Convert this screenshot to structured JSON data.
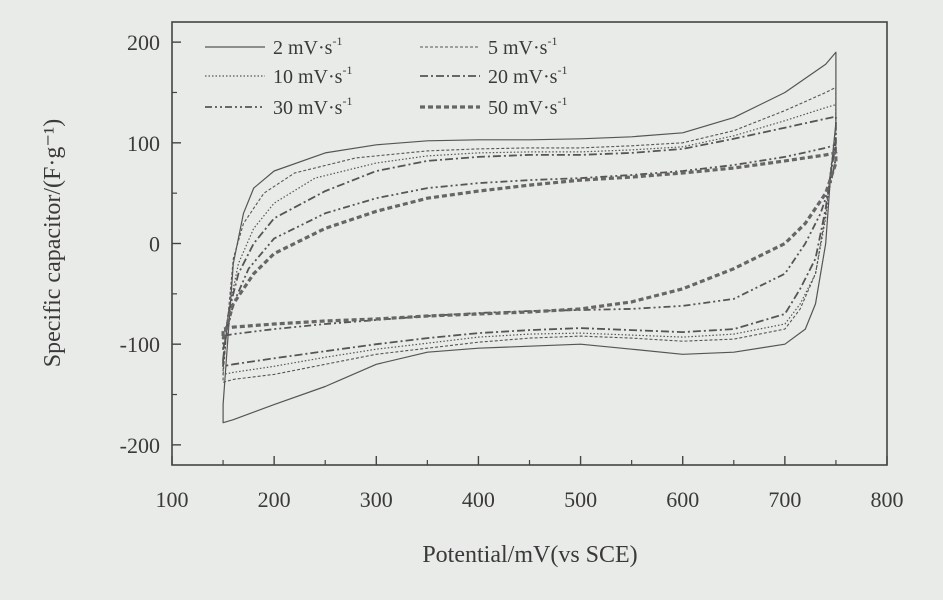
{
  "chart_data": {
    "type": "line",
    "title": "",
    "xlabel": "Potential/mV(vs SCE)",
    "ylabel": "Specific capacitor/(F·g⁻¹)",
    "xlim": [
      100,
      800
    ],
    "ylim": [
      -220,
      220
    ],
    "xticks": [
      100,
      200,
      300,
      400,
      500,
      600,
      700,
      800
    ],
    "yticks": [
      -200,
      -100,
      0,
      100,
      200
    ],
    "legend_position": "top",
    "series": [
      {
        "name": "2 mV·s⁻¹",
        "legend_base": "2 mV·s",
        "legend_sup": "-1",
        "dash": "",
        "width": 1.2,
        "color": "#555555",
        "upper": [
          [
            150,
            -160
          ],
          [
            155,
            -90
          ],
          [
            160,
            -20
          ],
          [
            170,
            30
          ],
          [
            180,
            55
          ],
          [
            200,
            72
          ],
          [
            250,
            90
          ],
          [
            300,
            98
          ],
          [
            350,
            102
          ],
          [
            400,
            103
          ],
          [
            450,
            103
          ],
          [
            500,
            104
          ],
          [
            550,
            106
          ],
          [
            600,
            110
          ],
          [
            650,
            125
          ],
          [
            700,
            150
          ],
          [
            740,
            178
          ],
          [
            750,
            190
          ]
        ],
        "lower": [
          [
            750,
            120
          ],
          [
            745,
            70
          ],
          [
            740,
            0
          ],
          [
            730,
            -60
          ],
          [
            720,
            -85
          ],
          [
            700,
            -100
          ],
          [
            650,
            -108
          ],
          [
            600,
            -110
          ],
          [
            550,
            -105
          ],
          [
            500,
            -100
          ],
          [
            450,
            -102
          ],
          [
            400,
            -104
          ],
          [
            350,
            -108
          ],
          [
            300,
            -120
          ],
          [
            250,
            -142
          ],
          [
            200,
            -160
          ],
          [
            160,
            -175
          ],
          [
            150,
            -178
          ]
        ]
      },
      {
        "name": "5 mV·s⁻¹",
        "legend_base": "5 mV·s",
        "legend_sup": "-1",
        "dash": "3 2",
        "width": 1.1,
        "color": "#555555",
        "upper": [
          [
            150,
            -130
          ],
          [
            155,
            -70
          ],
          [
            160,
            -15
          ],
          [
            170,
            20
          ],
          [
            190,
            50
          ],
          [
            220,
            70
          ],
          [
            280,
            85
          ],
          [
            350,
            92
          ],
          [
            400,
            94
          ],
          [
            450,
            95
          ],
          [
            500,
            95
          ],
          [
            550,
            97
          ],
          [
            600,
            100
          ],
          [
            650,
            112
          ],
          [
            700,
            132
          ],
          [
            740,
            150
          ],
          [
            750,
            155
          ]
        ],
        "lower": [
          [
            750,
            110
          ],
          [
            745,
            75
          ],
          [
            740,
            30
          ],
          [
            730,
            -30
          ],
          [
            715,
            -65
          ],
          [
            700,
            -85
          ],
          [
            650,
            -95
          ],
          [
            600,
            -97
          ],
          [
            550,
            -94
          ],
          [
            500,
            -92
          ],
          [
            450,
            -94
          ],
          [
            400,
            -98
          ],
          [
            350,
            -104
          ],
          [
            300,
            -110
          ],
          [
            250,
            -120
          ],
          [
            200,
            -130
          ],
          [
            160,
            -135
          ],
          [
            150,
            -138
          ]
        ]
      },
      {
        "name": "10 mV·s⁻¹",
        "legend_base": "10 mV·s",
        "legend_sup": "-1",
        "dash": "1.5 2",
        "width": 1.2,
        "color": "#555555",
        "upper": [
          [
            150,
            -125
          ],
          [
            155,
            -70
          ],
          [
            165,
            -20
          ],
          [
            180,
            15
          ],
          [
            200,
            40
          ],
          [
            240,
            65
          ],
          [
            300,
            80
          ],
          [
            350,
            87
          ],
          [
            400,
            90
          ],
          [
            450,
            91
          ],
          [
            500,
            91
          ],
          [
            550,
            93
          ],
          [
            600,
            96
          ],
          [
            650,
            107
          ],
          [
            700,
            122
          ],
          [
            740,
            135
          ],
          [
            750,
            138
          ]
        ],
        "lower": [
          [
            750,
            105
          ],
          [
            745,
            70
          ],
          [
            740,
            25
          ],
          [
            730,
            -30
          ],
          [
            715,
            -60
          ],
          [
            700,
            -80
          ],
          [
            650,
            -90
          ],
          [
            600,
            -93
          ],
          [
            550,
            -91
          ],
          [
            500,
            -89
          ],
          [
            450,
            -90
          ],
          [
            400,
            -93
          ],
          [
            350,
            -99
          ],
          [
            300,
            -105
          ],
          [
            250,
            -113
          ],
          [
            200,
            -122
          ],
          [
            160,
            -128
          ],
          [
            150,
            -130
          ]
        ]
      },
      {
        "name": "20 mV·s⁻¹",
        "legend_base": "20 mV·s",
        "legend_sup": "-1",
        "dash": "8 3 2 3",
        "width": 1.8,
        "color": "#555555",
        "upper": [
          [
            150,
            -115
          ],
          [
            155,
            -70
          ],
          [
            165,
            -30
          ],
          [
            180,
            0
          ],
          [
            200,
            25
          ],
          [
            250,
            52
          ],
          [
            300,
            72
          ],
          [
            350,
            82
          ],
          [
            400,
            86
          ],
          [
            450,
            88
          ],
          [
            500,
            88
          ],
          [
            550,
            90
          ],
          [
            600,
            94
          ],
          [
            650,
            104
          ],
          [
            700,
            115
          ],
          [
            740,
            124
          ],
          [
            750,
            126
          ]
        ],
        "lower": [
          [
            750,
            100
          ],
          [
            745,
            70
          ],
          [
            740,
            35
          ],
          [
            730,
            -15
          ],
          [
            715,
            -45
          ],
          [
            700,
            -70
          ],
          [
            650,
            -85
          ],
          [
            600,
            -88
          ],
          [
            550,
            -86
          ],
          [
            500,
            -84
          ],
          [
            450,
            -86
          ],
          [
            400,
            -89
          ],
          [
            350,
            -94
          ],
          [
            300,
            -100
          ],
          [
            250,
            -107
          ],
          [
            200,
            -114
          ],
          [
            160,
            -120
          ],
          [
            150,
            -122
          ]
        ]
      },
      {
        "name": "30 mV·s⁻¹",
        "legend_base": "30 mV·s",
        "legend_sup": "-1",
        "dash": "7 3 2 3 2 3",
        "width": 1.8,
        "color": "#555555",
        "upper": [
          [
            150,
            -105
          ],
          [
            160,
            -60
          ],
          [
            175,
            -25
          ],
          [
            200,
            5
          ],
          [
            250,
            30
          ],
          [
            300,
            45
          ],
          [
            350,
            55
          ],
          [
            400,
            60
          ],
          [
            450,
            63
          ],
          [
            500,
            65
          ],
          [
            550,
            68
          ],
          [
            600,
            72
          ],
          [
            650,
            78
          ],
          [
            700,
            86
          ],
          [
            740,
            95
          ],
          [
            750,
            98
          ]
        ],
        "lower": [
          [
            750,
            85
          ],
          [
            745,
            60
          ],
          [
            735,
            30
          ],
          [
            720,
            0
          ],
          [
            700,
            -30
          ],
          [
            650,
            -55
          ],
          [
            600,
            -62
          ],
          [
            550,
            -65
          ],
          [
            500,
            -66
          ],
          [
            450,
            -67
          ],
          [
            400,
            -69
          ],
          [
            350,
            -72
          ],
          [
            300,
            -76
          ],
          [
            250,
            -80
          ],
          [
            200,
            -85
          ],
          [
            160,
            -90
          ],
          [
            150,
            -92
          ]
        ]
      },
      {
        "name": "50 mV·s⁻¹",
        "legend_base": "50 mV·s",
        "legend_sup": "-1",
        "dash": "5 3",
        "width": 3.2,
        "color": "#666666",
        "upper": [
          [
            150,
            -95
          ],
          [
            160,
            -60
          ],
          [
            180,
            -30
          ],
          [
            200,
            -10
          ],
          [
            250,
            15
          ],
          [
            300,
            32
          ],
          [
            350,
            45
          ],
          [
            400,
            52
          ],
          [
            450,
            58
          ],
          [
            500,
            63
          ],
          [
            550,
            66
          ],
          [
            600,
            70
          ],
          [
            650,
            75
          ],
          [
            700,
            82
          ],
          [
            740,
            88
          ],
          [
            750,
            90
          ]
        ],
        "lower": [
          [
            750,
            80
          ],
          [
            740,
            50
          ],
          [
            720,
            20
          ],
          [
            700,
            0
          ],
          [
            650,
            -25
          ],
          [
            600,
            -45
          ],
          [
            550,
            -58
          ],
          [
            500,
            -65
          ],
          [
            450,
            -68
          ],
          [
            400,
            -70
          ],
          [
            350,
            -72
          ],
          [
            300,
            -75
          ],
          [
            250,
            -77
          ],
          [
            200,
            -80
          ],
          [
            160,
            -83
          ],
          [
            150,
            -85
          ]
        ]
      }
    ]
  }
}
